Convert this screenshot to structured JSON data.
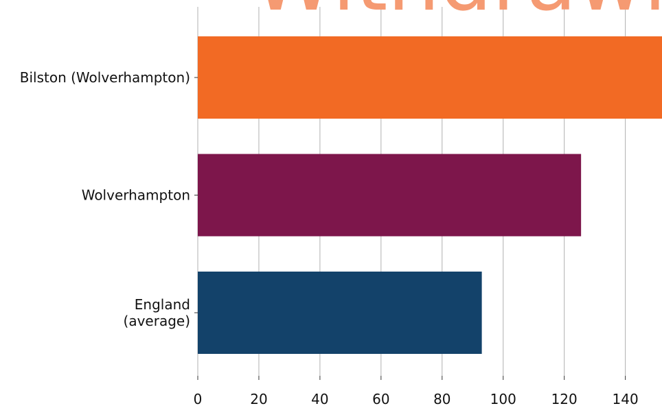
{
  "watermark": "Withdrawn",
  "chart_data": {
    "type": "bar",
    "orientation": "horizontal",
    "categories": [
      "Bilston (Wolverhampton)",
      "Wolverhampton",
      "England\n(average)"
    ],
    "values": [
      155,
      125.5,
      93
    ],
    "colors": [
      "#f26a24",
      "#7d164b",
      "#13426a"
    ],
    "xlim": [
      0,
      152
    ],
    "xticks": [
      0,
      20,
      40,
      60,
      80,
      100,
      120,
      140
    ],
    "title": "",
    "xlabel": "",
    "ylabel": "",
    "grid": "vertical",
    "legend": "none"
  }
}
